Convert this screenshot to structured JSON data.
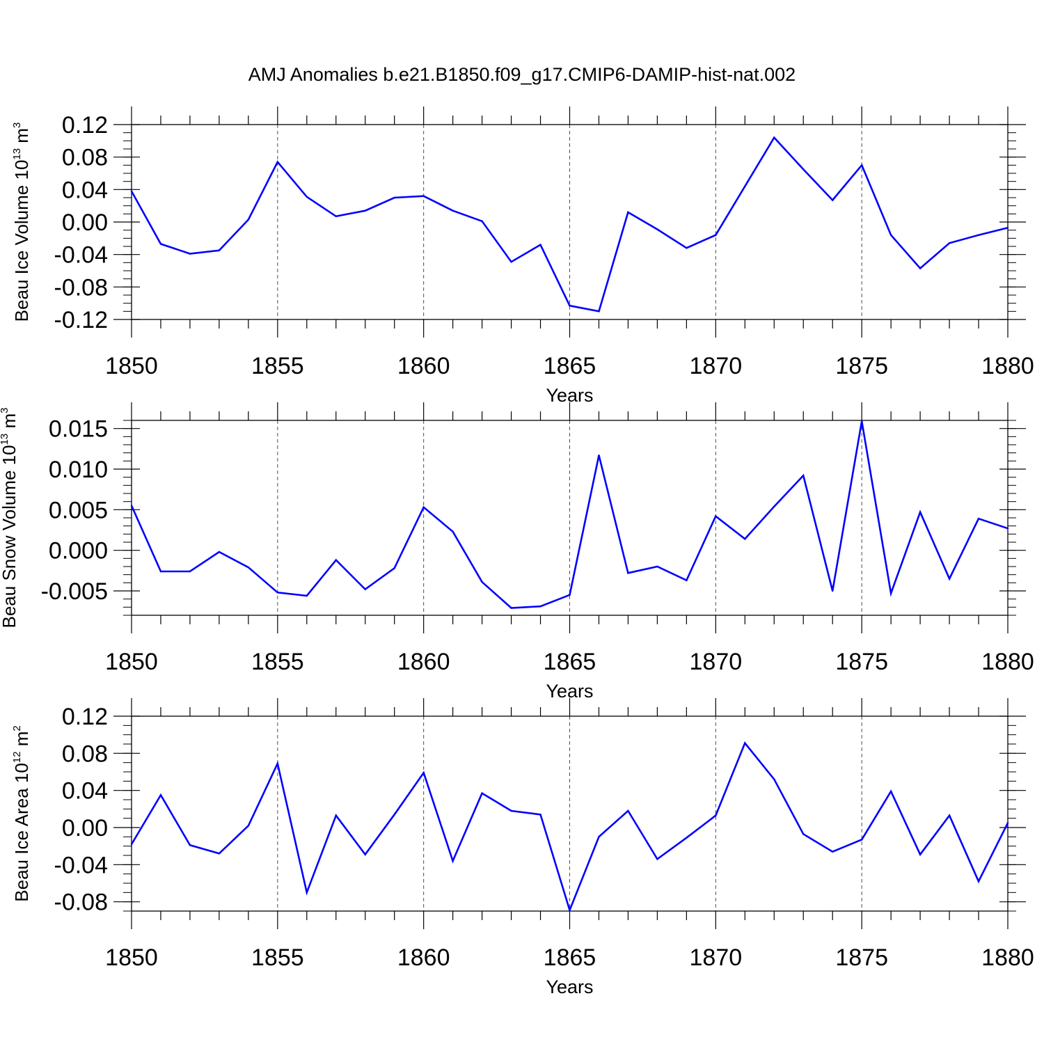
{
  "chart_data": [
    {
      "type": "line",
      "title": "AMJ Anomalies b.e21.B1850.f09_g17.CMIP6-DAMIP-hist-nat.002",
      "ylabel": {
        "base": "Beau Ice Volume 10",
        "exp": "13",
        "unit": " m",
        "unit_exp": "3"
      },
      "xlabel": "Years",
      "xlim": [
        1850,
        1880
      ],
      "ylim": [
        -0.12,
        0.12
      ],
      "x_ticks": [
        "1850",
        "1855",
        "1860",
        "1865",
        "1870",
        "1875",
        "1880"
      ],
      "y_ticks": [
        "0.12",
        "0.08",
        "0.04",
        "0.00",
        "-0.04",
        "-0.08",
        "-0.12"
      ],
      "grid": "dashed vertical at major x ticks",
      "line_color": "#0000ff",
      "x": [
        1850,
        1851,
        1852,
        1853,
        1854,
        1855,
        1856,
        1857,
        1858,
        1859,
        1860,
        1861,
        1862,
        1863,
        1864,
        1865,
        1866,
        1867,
        1868,
        1869,
        1870,
        1871,
        1872,
        1873,
        1874,
        1875,
        1876,
        1877,
        1878,
        1879,
        1880
      ],
      "values": [
        0.038,
        -0.027,
        -0.039,
        -0.035,
        0.003,
        0.074,
        0.031,
        0.007,
        0.014,
        0.03,
        0.032,
        0.014,
        0.001,
        -0.049,
        -0.028,
        -0.103,
        -0.11,
        0.012,
        -0.009,
        -0.032,
        -0.016,
        0.044,
        0.104,
        0.065,
        0.027,
        0.07,
        -0.016,
        -0.057,
        -0.026,
        -0.016,
        -0.007
      ]
    },
    {
      "type": "line",
      "ylabel": {
        "base": "Beau Snow Volume 10",
        "exp": "13",
        "unit": " m",
        "unit_exp": "3"
      },
      "xlabel": "Years",
      "xlim": [
        1850,
        1880
      ],
      "ylim": [
        -0.008,
        0.016
      ],
      "x_ticks": [
        "1850",
        "1855",
        "1860",
        "1865",
        "1870",
        "1875",
        "1880"
      ],
      "y_ticks": [
        "0.015",
        "0.010",
        "0.005",
        "0.000",
        "-0.005"
      ],
      "grid": "dashed vertical at major x ticks",
      "line_color": "#0000ff",
      "x": [
        1850,
        1851,
        1852,
        1853,
        1854,
        1855,
        1856,
        1857,
        1858,
        1859,
        1860,
        1861,
        1862,
        1863,
        1864,
        1865,
        1866,
        1867,
        1868,
        1869,
        1870,
        1871,
        1872,
        1873,
        1874,
        1875,
        1876,
        1877,
        1878,
        1879,
        1880
      ],
      "values": [
        0.0055,
        -0.0026,
        -0.0026,
        -0.0002,
        -0.0021,
        -0.0052,
        -0.0056,
        -0.0012,
        -0.0048,
        -0.0022,
        0.0053,
        0.0023,
        -0.0039,
        -0.0071,
        -0.0069,
        -0.0055,
        0.0117,
        -0.0028,
        -0.002,
        -0.0037,
        0.0042,
        0.0014,
        0.0054,
        0.0092,
        -0.005,
        0.0159,
        -0.0053,
        0.0047,
        -0.0035,
        0.0039,
        0.0027
      ]
    },
    {
      "type": "line",
      "ylabel": {
        "base": "Beau Ice Area 10",
        "exp": "12",
        "unit": " m",
        "unit_exp": "2"
      },
      "xlabel": "Years",
      "xlim": [
        1850,
        1880
      ],
      "ylim": [
        -0.09,
        0.12
      ],
      "x_ticks": [
        "1850",
        "1855",
        "1860",
        "1865",
        "1870",
        "1875",
        "1880"
      ],
      "y_ticks": [
        "0.12",
        "0.08",
        "0.04",
        "0.00",
        "-0.04",
        "-0.08"
      ],
      "grid": "dashed vertical at major x ticks",
      "line_color": "#0000ff",
      "x": [
        1850,
        1851,
        1852,
        1853,
        1854,
        1855,
        1856,
        1857,
        1858,
        1859,
        1860,
        1861,
        1862,
        1863,
        1864,
        1865,
        1866,
        1867,
        1868,
        1869,
        1870,
        1871,
        1872,
        1873,
        1874,
        1875,
        1876,
        1877,
        1878,
        1879,
        1880
      ],
      "values": [
        -0.018,
        0.035,
        -0.019,
        -0.028,
        0.002,
        0.069,
        -0.07,
        0.013,
        -0.029,
        0.014,
        0.059,
        -0.036,
        0.037,
        0.018,
        0.014,
        -0.089,
        -0.01,
        0.018,
        -0.034,
        -0.011,
        0.013,
        0.091,
        0.052,
        -0.007,
        -0.026,
        -0.013,
        0.039,
        -0.029,
        0.013,
        -0.058,
        0.005
      ]
    }
  ]
}
